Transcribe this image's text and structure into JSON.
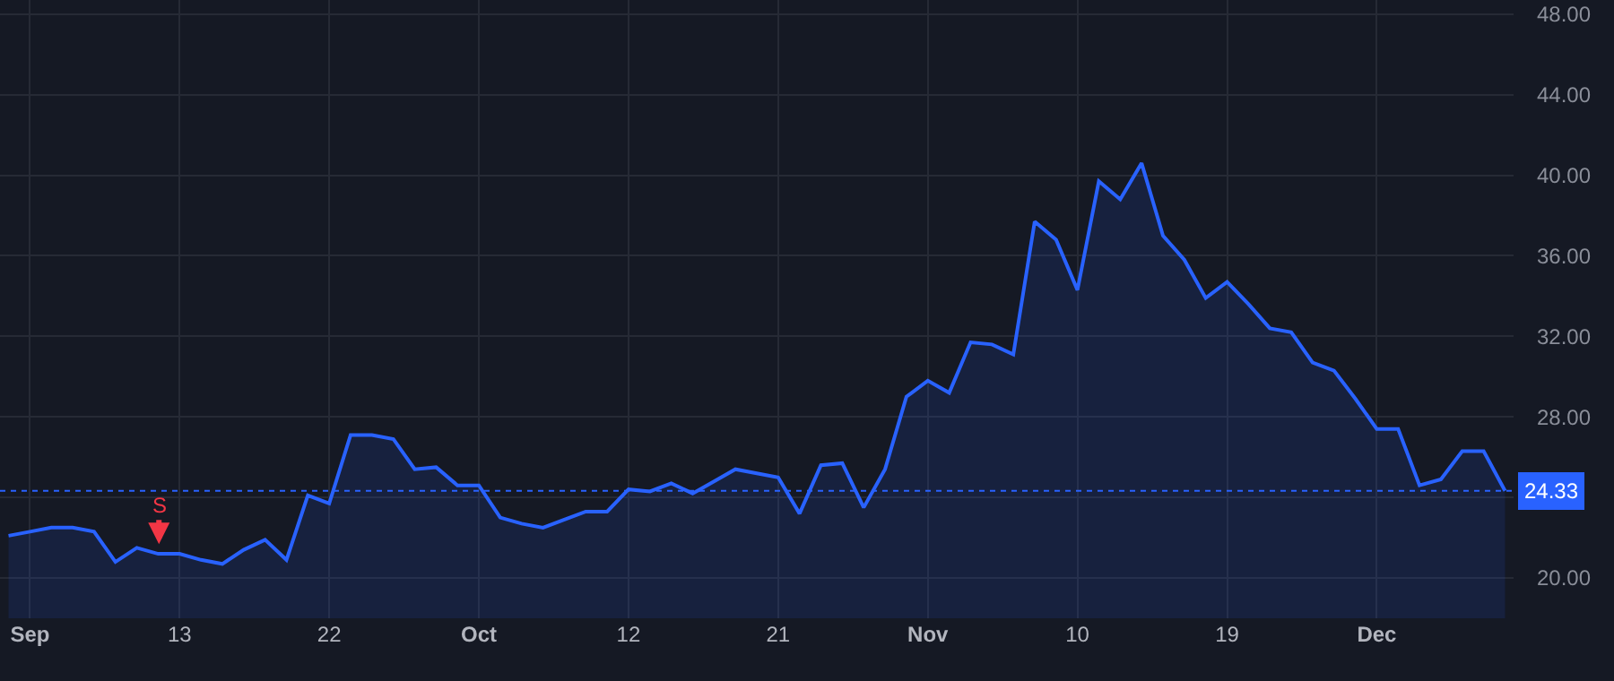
{
  "chart_data": {
    "type": "area",
    "categories": [
      null,
      "Sep",
      null,
      null,
      null,
      null,
      null,
      null,
      "13",
      null,
      null,
      null,
      null,
      null,
      null,
      "22",
      null,
      null,
      null,
      null,
      null,
      null,
      "Oct",
      null,
      null,
      null,
      null,
      null,
      null,
      "12",
      null,
      null,
      null,
      null,
      null,
      null,
      "21",
      null,
      null,
      null,
      null,
      null,
      null,
      "Nov",
      null,
      null,
      null,
      null,
      null,
      null,
      "10",
      null,
      null,
      null,
      null,
      null,
      null,
      "19",
      null,
      null,
      null,
      null,
      null,
      null,
      "Dec",
      null,
      null,
      null,
      null,
      null,
      null
    ],
    "series": [
      {
        "color": "#2962ff",
        "values": [
          22.1,
          22.3,
          22.5,
          22.5,
          22.3,
          20.8,
          21.5,
          21.2,
          21.2,
          20.9,
          20.7,
          21.4,
          21.9,
          20.9,
          24.1,
          23.7,
          27.1,
          27.1,
          26.9,
          25.4,
          25.5,
          24.6,
          24.6,
          23.0,
          22.7,
          22.5,
          22.9,
          23.3,
          23.3,
          24.4,
          24.3,
          24.7,
          24.2,
          24.8,
          25.4,
          25.2,
          25.0,
          23.2,
          25.6,
          25.7,
          23.5,
          25.4,
          29.0,
          29.8,
          29.2,
          31.7,
          31.6,
          31.1,
          37.7,
          36.8,
          34.3,
          39.7,
          38.8,
          40.6,
          37.0,
          35.8,
          33.9,
          34.7,
          33.6,
          32.4,
          32.2,
          30.7,
          30.3,
          28.9,
          27.4,
          27.4,
          24.6,
          24.9,
          26.3,
          26.3,
          24.33
        ]
      }
    ],
    "ylim": [
      18,
      48.7
    ],
    "yticks": [
      {
        "value": 20,
        "label": "20.00"
      },
      {
        "value": 24,
        "label": null
      },
      {
        "value": 28,
        "label": "28.00"
      },
      {
        "value": 32,
        "label": "32.00"
      },
      {
        "value": 36,
        "label": "36.00"
      },
      {
        "value": 40,
        "label": "40.00"
      },
      {
        "value": 44,
        "label": "44.00"
      },
      {
        "value": 48,
        "label": "48.00"
      }
    ],
    "ref_lines": [
      {
        "axis": "y",
        "value": 24.33,
        "label": "24.33",
        "color": "#2962ff",
        "line_style": "dotted"
      }
    ],
    "annotations": [
      "S"
    ],
    "grid": true
  }
}
